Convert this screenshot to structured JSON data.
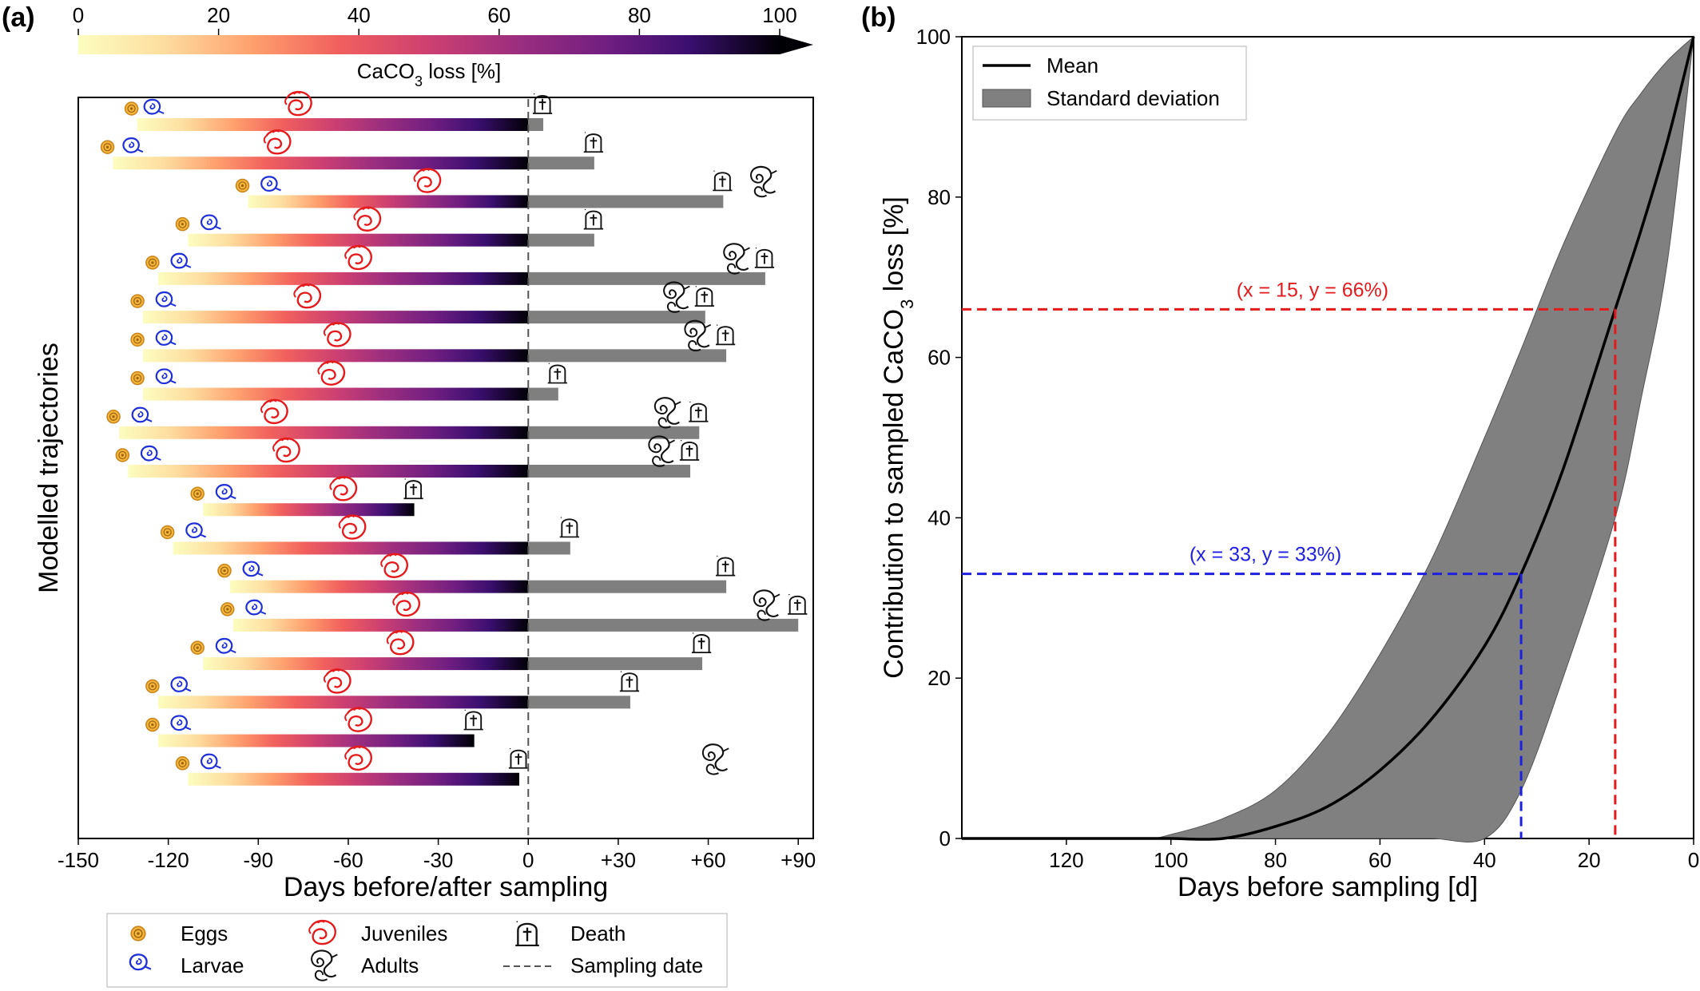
{
  "panels": {
    "a": {
      "label": "(a)",
      "colorbar": {
        "label": "CaCO3 loss [%]",
        "label_parts": [
          "CaCO",
          "3",
          " loss [%]"
        ],
        "ticks": [
          "0",
          "20",
          "40",
          "60",
          "80",
          "100"
        ],
        "colormap": "magma_r",
        "range": [
          0,
          100
        ],
        "extend": "max"
      },
      "xlabel": "Days before/after sampling",
      "ylabel": "Modelled trajectories",
      "x_ticks": [
        -150,
        -120,
        -90,
        -60,
        -30,
        0,
        30,
        60,
        90
      ],
      "x_tick_labels": [
        "-150",
        "-120",
        "-90",
        "-60",
        "-30",
        "0",
        "+30",
        "+60",
        "+90"
      ],
      "legend": {
        "eggs": "Eggs",
        "larvae": "Larvae",
        "juveniles": "Juveniles",
        "adults": "Adults",
        "death": "Death",
        "sampling": "Sampling date"
      }
    },
    "b": {
      "label": "(b)",
      "xlabel": "Days before sampling [d]",
      "ylabel": "Contribution to sampled CaCO3 loss [%]",
      "ylabel_parts": [
        "Contribution to sampled CaCO",
        "3",
        " loss [%]"
      ],
      "x_ticks": [
        "120",
        "100",
        "80",
        "60",
        "40",
        "20",
        "0"
      ],
      "y_ticks": [
        "0",
        "20",
        "40",
        "60",
        "80",
        "100"
      ],
      "legend": {
        "mean": "Mean",
        "std": "Standard deviation"
      },
      "annotations": [
        {
          "text": "(x = 15, y = 66%)",
          "x": 15,
          "y": 66,
          "color": "#e41a1c"
        },
        {
          "text": "(x = 33, y = 33%)",
          "x": 33,
          "y": 33,
          "color": "#1f1fe0"
        }
      ]
    }
  },
  "chart_data": [
    {
      "type": "bar",
      "title": "",
      "xlabel": "Days before/after sampling",
      "ylabel": "Modelled trajectories",
      "xlim": [
        -150,
        95
      ],
      "trajectories": [
        {
          "egg": -132,
          "larva": -126,
          "juvenile": -76,
          "death": 5,
          "adult": null
        },
        {
          "egg": -140,
          "larva": -133,
          "juvenile": -83,
          "death": 22,
          "adult": null
        },
        {
          "egg": -95,
          "larva": -87,
          "juvenile": -33,
          "death": 65,
          "adult": 79
        },
        {
          "egg": -115,
          "larva": -107,
          "juvenile": -53,
          "death": 22,
          "adult": null
        },
        {
          "egg": -125,
          "larva": -117,
          "juvenile": -56,
          "death": 79,
          "adult": 70
        },
        {
          "egg": -130,
          "larva": -122,
          "juvenile": -73,
          "death": 59,
          "adult": 50
        },
        {
          "egg": -130,
          "larva": -122,
          "juvenile": -63,
          "death": 66,
          "adult": 57
        },
        {
          "egg": -130,
          "larva": -122,
          "juvenile": -65,
          "death": 10,
          "adult": null
        },
        {
          "egg": -138,
          "larva": -130,
          "juvenile": -84,
          "death": 57,
          "adult": 47
        },
        {
          "egg": -135,
          "larva": -127,
          "juvenile": -80,
          "death": 54,
          "adult": 45
        },
        {
          "egg": -110,
          "larva": -102,
          "juvenile": -61,
          "death": -38,
          "adult": null
        },
        {
          "egg": -120,
          "larva": -112,
          "juvenile": -58,
          "death": 14,
          "adult": null
        },
        {
          "egg": -101,
          "larva": -93,
          "juvenile": -44,
          "death": 66,
          "adult": null
        },
        {
          "egg": -100,
          "larva": -92,
          "juvenile": -40,
          "death": 90,
          "adult": 80
        },
        {
          "egg": -110,
          "larva": -102,
          "juvenile": -42,
          "death": 58,
          "adult": null
        },
        {
          "egg": -125,
          "larva": -117,
          "juvenile": -63,
          "death": 34,
          "adult": null
        },
        {
          "egg": -125,
          "larva": -117,
          "juvenile": -56,
          "death": -18,
          "adult": null
        },
        {
          "egg": -115,
          "larva": -107,
          "juvenile": -56,
          "death": -3,
          "adult": 63
        }
      ],
      "sampling_date": 0
    },
    {
      "type": "area",
      "title": "",
      "xlabel": "Days before sampling [d]",
      "ylabel": "Contribution to sampled CaCO3 loss [%]",
      "xlim": [
        140,
        0
      ],
      "ylim": [
        0,
        100
      ],
      "x": [
        140,
        120,
        105,
        100,
        90,
        80,
        70,
        60,
        50,
        40,
        33,
        25,
        15,
        10,
        5,
        0
      ],
      "series": [
        {
          "name": "Mean",
          "values": [
            0,
            0,
            0,
            0,
            0,
            1.5,
            4,
            8.5,
            15,
            24,
            33,
            46,
            66,
            76,
            87,
            100
          ]
        },
        {
          "name": "Standard deviation",
          "lower": [
            0,
            0,
            0,
            0,
            0,
            0,
            0,
            0,
            0,
            0,
            6,
            20,
            40,
            55,
            72,
            100
          ],
          "upper": [
            0,
            0,
            0,
            0.5,
            2.5,
            6,
            13,
            23,
            35,
            50,
            61,
            74,
            88,
            93,
            97,
            100
          ]
        }
      ],
      "reference_lines": [
        {
          "x": 15,
          "y": 66,
          "color": "#e41a1c"
        },
        {
          "x": 33,
          "y": 33,
          "color": "#1f1fe0"
        }
      ],
      "grid": false,
      "legend_position": "top-left"
    }
  ]
}
